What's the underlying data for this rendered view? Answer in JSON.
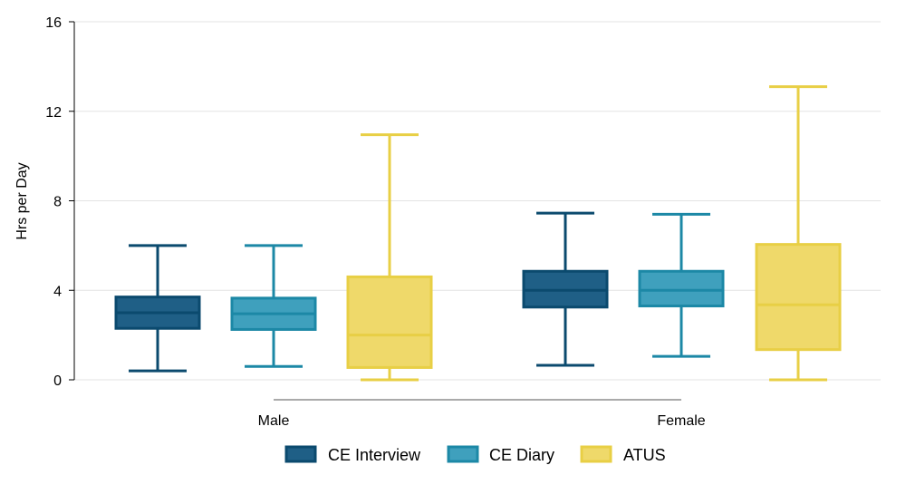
{
  "chart_data": {
    "type": "boxplot",
    "ylabel": "Hrs per Day",
    "ylim": [
      0,
      16
    ],
    "yticks": [
      0,
      4,
      8,
      12,
      16
    ],
    "grid": true,
    "legend_position": "bottom",
    "groups": [
      "Male",
      "Female"
    ],
    "series": [
      {
        "name": "CE Interview",
        "color": "#1f5f86",
        "edge": "#0b4a6e",
        "boxes": [
          {
            "group": "Male",
            "whisker_low": 0.4,
            "q1": 2.3,
            "median": 3.0,
            "q3": 3.7,
            "whisker_high": 6.0
          },
          {
            "group": "Female",
            "whisker_low": 0.65,
            "q1": 3.25,
            "median": 4.0,
            "q3": 4.85,
            "whisker_high": 7.45
          }
        ]
      },
      {
        "name": "CE Diary",
        "color": "#3fa0bd",
        "edge": "#1c88a6",
        "boxes": [
          {
            "group": "Male",
            "whisker_low": 0.6,
            "q1": 2.25,
            "median": 2.95,
            "q3": 3.65,
            "whisker_high": 6.0
          },
          {
            "group": "Female",
            "whisker_low": 1.05,
            "q1": 3.3,
            "median": 4.0,
            "q3": 4.85,
            "whisker_high": 7.4
          }
        ]
      },
      {
        "name": "ATUS",
        "color": "#efd96a",
        "edge": "#e8cf45",
        "boxes": [
          {
            "group": "Male",
            "whisker_low": 0.0,
            "q1": 0.55,
            "median": 2.0,
            "q3": 4.6,
            "whisker_high": 10.95
          },
          {
            "group": "Female",
            "whisker_low": 0.0,
            "q1": 1.35,
            "median": 3.35,
            "q3": 6.05,
            "whisker_high": 13.1
          }
        ]
      }
    ]
  }
}
